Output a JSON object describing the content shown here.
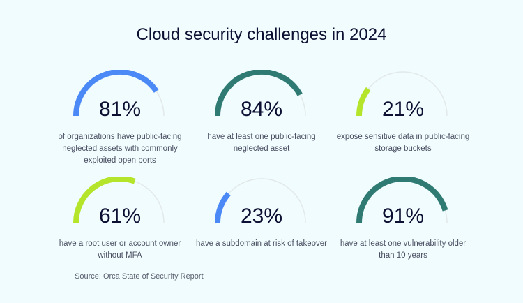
{
  "title": "Cloud security challenges in 2024",
  "source": "Source: Orca State of Security Report",
  "colors": {
    "blue": "#4b8af6",
    "teal": "#2f7b73",
    "lime": "#b5e52a",
    "track": "#e3e8ea"
  },
  "chart_data": {
    "type": "gauge",
    "range": [
      0,
      100
    ],
    "items": [
      {
        "value": 81,
        "label": "81%",
        "description": "of organizations have public-facing neglected assets with commonly exploited open ports",
        "color": "#4b8af6"
      },
      {
        "value": 84,
        "label": "84%",
        "description": "have at least one public-facing neglected asset",
        "color": "#2f7b73"
      },
      {
        "value": 21,
        "label": "21%",
        "description": "expose sensitive data in public-facing storage buckets",
        "color": "#b5e52a"
      },
      {
        "value": 61,
        "label": "61%",
        "description": "have a root user or account owner without MFA",
        "color": "#b5e52a"
      },
      {
        "value": 23,
        "label": "23%",
        "description": "have a subdomain at risk of takeover",
        "color": "#4b8af6"
      },
      {
        "value": 91,
        "label": "91%",
        "description": "have at least one vulnerability older than 10 years",
        "color": "#2f7b73"
      }
    ]
  }
}
